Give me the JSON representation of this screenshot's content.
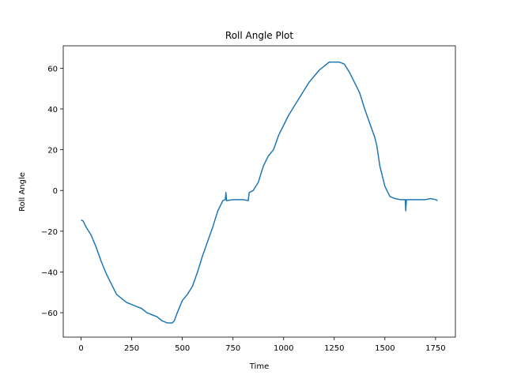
{
  "chart_data": {
    "type": "line",
    "title": "Roll Angle Plot",
    "x_label": "Time",
    "y_label": "Roll Angle",
    "xlim": [
      -88,
      1848
    ],
    "ylim": [
      -72,
      71
    ],
    "xticks": [
      0,
      250,
      500,
      750,
      1000,
      1250,
      1500,
      1750
    ],
    "yticks": [
      {
        "value": -60,
        "label": "−60"
      },
      {
        "value": -40,
        "label": "−40"
      },
      {
        "value": -20,
        "label": "−20"
      },
      0,
      20,
      40,
      60
    ],
    "x": [
      0,
      10,
      25,
      50,
      75,
      100,
      125,
      150,
      175,
      200,
      225,
      250,
      275,
      300,
      325,
      350,
      375,
      400,
      425,
      450,
      460,
      475,
      500,
      525,
      550,
      575,
      600,
      625,
      650,
      675,
      700,
      712,
      715,
      718,
      750,
      775,
      800,
      825,
      830,
      850,
      875,
      900,
      925,
      950,
      975,
      1000,
      1025,
      1050,
      1075,
      1100,
      1125,
      1150,
      1175,
      1200,
      1225,
      1250,
      1275,
      1300,
      1325,
      1350,
      1375,
      1400,
      1425,
      1450,
      1460,
      1475,
      1500,
      1525,
      1550,
      1575,
      1600,
      1603,
      1606,
      1625,
      1650,
      1675,
      1700,
      1725,
      1750,
      1760
    ],
    "series": [
      {
        "name": "Roll Angle",
        "color": "#1f77b4",
        "values": [
          -14.5,
          -15,
          -18,
          -22,
          -28,
          -35,
          -41,
          -46,
          -51,
          -53,
          -55,
          -56,
          -57,
          -58,
          -60,
          -61,
          -62,
          -64,
          -65,
          -65,
          -64,
          -60,
          -54,
          -51,
          -47,
          -40,
          -32,
          -25,
          -18,
          -10,
          -5,
          -4.5,
          -1,
          -5,
          -4.5,
          -4.5,
          -4.5,
          -5,
          -1,
          0,
          4,
          12,
          17,
          20,
          27,
          32,
          37,
          41,
          45,
          49,
          53,
          56,
          59,
          61,
          63,
          63,
          63,
          62,
          58,
          53,
          48,
          40,
          33,
          26,
          22,
          12,
          2,
          -3,
          -4,
          -4.5,
          -4.5,
          -10,
          -4.5,
          -4.5,
          -4.5,
          -4.5,
          -4.5,
          -4,
          -4.5,
          -5
        ]
      }
    ]
  }
}
